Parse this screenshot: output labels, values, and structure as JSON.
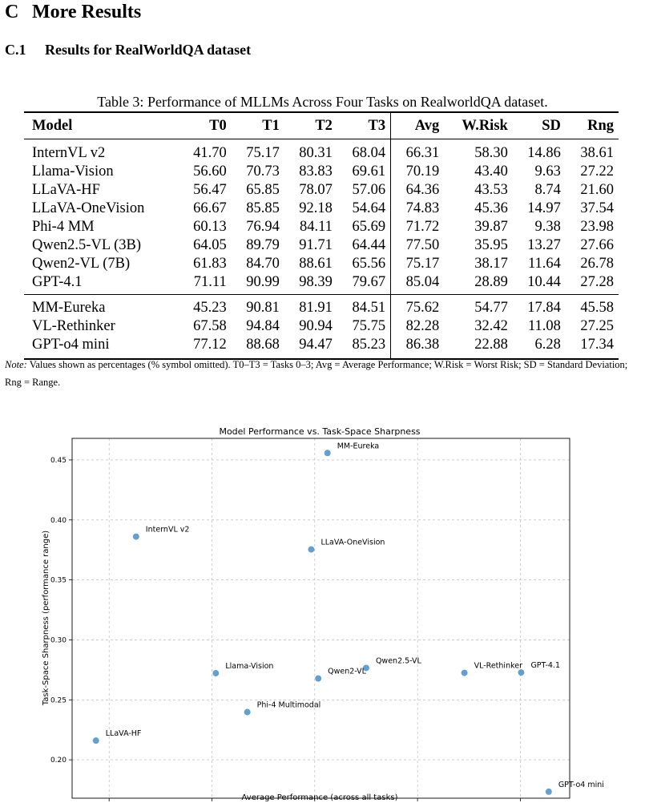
{
  "section": {
    "number": "C",
    "title": "More Results"
  },
  "subsection": {
    "number": "C.1",
    "title": "Results for RealWorldQA dataset"
  },
  "table": {
    "caption": "Table 3: Performance of MLLMs Across Four Tasks on RealworldQA dataset.",
    "headers": [
      "Model",
      "T0",
      "T1",
      "T2",
      "T3",
      "Avg",
      "W.Risk",
      "SD",
      "Rng"
    ],
    "group1": [
      [
        "InternVL v2",
        "41.70",
        "75.17",
        "80.31",
        "68.04",
        "66.31",
        "58.30",
        "14.86",
        "38.61"
      ],
      [
        "Llama-Vision",
        "56.60",
        "70.73",
        "83.83",
        "69.61",
        "70.19",
        "43.40",
        "9.63",
        "27.22"
      ],
      [
        "LLaVA-HF",
        "56.47",
        "65.85",
        "78.07",
        "57.06",
        "64.36",
        "43.53",
        "8.74",
        "21.60"
      ],
      [
        "LLaVA-OneVision",
        "66.67",
        "85.85",
        "92.18",
        "54.64",
        "74.83",
        "45.36",
        "14.97",
        "37.54"
      ],
      [
        "Phi-4 MM",
        "60.13",
        "76.94",
        "84.11",
        "65.69",
        "71.72",
        "39.87",
        "9.38",
        "23.98"
      ],
      [
        "Qwen2.5-VL (3B)",
        "64.05",
        "89.79",
        "91.71",
        "64.44",
        "77.50",
        "35.95",
        "13.27",
        "27.66"
      ],
      [
        "Qwen2-VL (7B)",
        "61.83",
        "84.70",
        "88.61",
        "65.56",
        "75.17",
        "38.17",
        "11.64",
        "26.78"
      ],
      [
        "GPT-4.1",
        "71.11",
        "90.99",
        "98.39",
        "79.67",
        "85.04",
        "28.89",
        "10.44",
        "27.28"
      ]
    ],
    "group2": [
      [
        "MM-Eureka",
        "45.23",
        "90.81",
        "81.91",
        "84.51",
        "75.62",
        "54.77",
        "17.84",
        "45.58"
      ],
      [
        "VL-Rethinker",
        "67.58",
        "94.84",
        "90.94",
        "75.75",
        "82.28",
        "32.42",
        "11.08",
        "27.25"
      ],
      [
        "GPT-o4 mini",
        "77.12",
        "88.68",
        "94.47",
        "85.23",
        "86.38",
        "22.88",
        "6.28",
        "17.34"
      ]
    ]
  },
  "note": {
    "lead": "Note:",
    "text": "Values shown as percentages (% symbol omitted). T0–T3 = Tasks 0–3; Avg = Average Performance; W.Risk = Worst Risk; SD = Standard Deviation; Rng = Range."
  },
  "chart_data": {
    "type": "scatter",
    "title": "Model Performance vs. Task-Space Sharpness",
    "xlabel": "Average Performance (across all tasks)",
    "ylabel": "Task-Space Sharpness (performance range)",
    "xlim": [
      0.632,
      0.874
    ],
    "ylim": [
      0.168,
      0.468
    ],
    "xticks": [
      0.65,
      0.7,
      0.75,
      0.8,
      0.85
    ],
    "yticks": [
      0.2,
      0.25,
      0.3,
      0.35,
      0.4,
      0.45
    ],
    "grid": true,
    "point_color": "#5b9bd0",
    "points": [
      {
        "label": "InternVL v2",
        "x": 0.6631,
        "y": 0.3861
      },
      {
        "label": "Llama-Vision",
        "x": 0.7019,
        "y": 0.2722
      },
      {
        "label": "LLaVA-HF",
        "x": 0.6436,
        "y": 0.216
      },
      {
        "label": "LLaVA-OneVision",
        "x": 0.7483,
        "y": 0.3754
      },
      {
        "label": "Phi-4 Multimodal",
        "x": 0.7172,
        "y": 0.2398
      },
      {
        "label": "Qwen2.5-VL",
        "x": 0.775,
        "y": 0.2766
      },
      {
        "label": "Qwen2-VL",
        "x": 0.7517,
        "y": 0.2678
      },
      {
        "label": "GPT-4.1",
        "x": 0.8504,
        "y": 0.2728
      },
      {
        "label": "MM-Eureka",
        "x": 0.7562,
        "y": 0.4558
      },
      {
        "label": "VL-Rethinker",
        "x": 0.8228,
        "y": 0.2725
      },
      {
        "label": "GPT-o4 mini",
        "x": 0.8638,
        "y": 0.1734
      }
    ]
  }
}
